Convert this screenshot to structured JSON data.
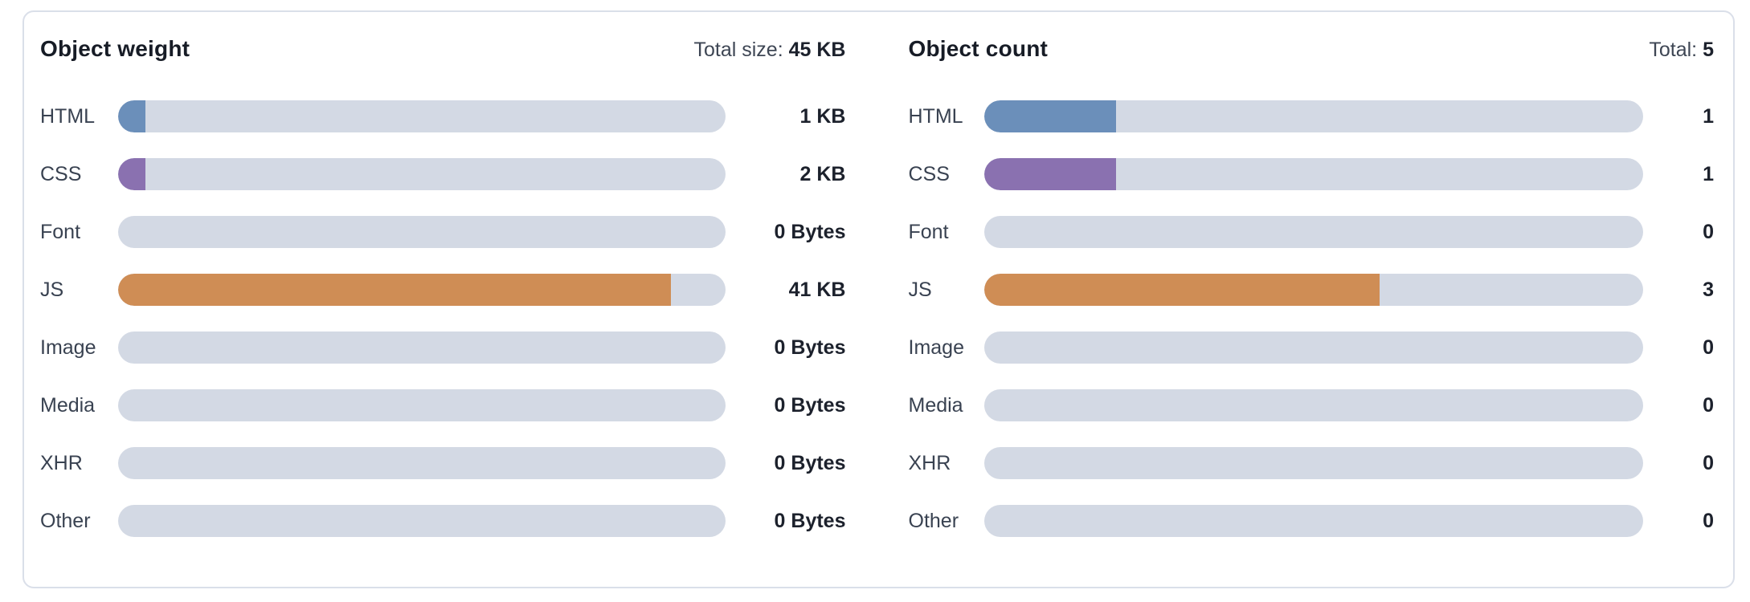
{
  "card": {
    "name": "resource-breakdown"
  },
  "colors": {
    "track": "#d3d9e4",
    "card_border": "#dadfe9",
    "html_bar": "#6b8fba",
    "css_bar": "#8a71b0",
    "js_bar": "#cf8d55",
    "title_text": "#171c26",
    "label_text": "#394251",
    "value_text": "#1c212c"
  },
  "panels": [
    {
      "title": "Object weight",
      "total_label": "Total size:",
      "total_value": "45 KB",
      "total": 45,
      "rows": [
        {
          "label": "HTML",
          "value_text": "1 KB",
          "amount": 1,
          "color": "#6b8fba"
        },
        {
          "label": "CSS",
          "value_text": "2 KB",
          "amount": 2,
          "color": "#8a71b0"
        },
        {
          "label": "Font",
          "value_text": "0 Bytes",
          "amount": 0,
          "color": null
        },
        {
          "label": "JS",
          "value_text": "41 KB",
          "amount": 41,
          "color": "#cf8d55"
        },
        {
          "label": "Image",
          "value_text": "0 Bytes",
          "amount": 0,
          "color": null
        },
        {
          "label": "Media",
          "value_text": "0 Bytes",
          "amount": 0,
          "color": null
        },
        {
          "label": "XHR",
          "value_text": "0 Bytes",
          "amount": 0,
          "color": null
        },
        {
          "label": "Other",
          "value_text": "0 Bytes",
          "amount": 0,
          "color": null
        }
      ]
    },
    {
      "title": "Object count",
      "total_label": "Total:",
      "total_value": "5",
      "total": 5,
      "rows": [
        {
          "label": "HTML",
          "value_text": "1",
          "amount": 1,
          "color": "#6b8fba"
        },
        {
          "label": "CSS",
          "value_text": "1",
          "amount": 1,
          "color": "#8a71b0"
        },
        {
          "label": "Font",
          "value_text": "0",
          "amount": 0,
          "color": null
        },
        {
          "label": "JS",
          "value_text": "3",
          "amount": 3,
          "color": "#cf8d55"
        },
        {
          "label": "Image",
          "value_text": "0",
          "amount": 0,
          "color": null
        },
        {
          "label": "Media",
          "value_text": "0",
          "amount": 0,
          "color": null
        },
        {
          "label": "XHR",
          "value_text": "0",
          "amount": 0,
          "color": null
        },
        {
          "label": "Other",
          "value_text": "0",
          "amount": 0,
          "color": null
        }
      ]
    }
  ],
  "chart_data": [
    {
      "type": "bar",
      "orientation": "horizontal",
      "title": "Object weight",
      "total_annotation": "Total size: 45 KB",
      "categories": [
        "HTML",
        "CSS",
        "Font",
        "JS",
        "Image",
        "Media",
        "XHR",
        "Other"
      ],
      "values": [
        1,
        2,
        0,
        41,
        0,
        0,
        0,
        0
      ],
      "value_labels": [
        "1 KB",
        "2 KB",
        "0 Bytes",
        "41 KB",
        "0 Bytes",
        "0 Bytes",
        "0 Bytes",
        "0 Bytes"
      ],
      "unit": "KB",
      "xlim": [
        0,
        45
      ],
      "grid": false,
      "legend": false,
      "bar_colors": [
        "#6b8fba",
        "#8a71b0",
        null,
        "#cf8d55",
        null,
        null,
        null,
        null
      ]
    },
    {
      "type": "bar",
      "orientation": "horizontal",
      "title": "Object count",
      "total_annotation": "Total: 5",
      "categories": [
        "HTML",
        "CSS",
        "Font",
        "JS",
        "Image",
        "Media",
        "XHR",
        "Other"
      ],
      "values": [
        1,
        1,
        0,
        3,
        0,
        0,
        0,
        0
      ],
      "value_labels": [
        "1",
        "1",
        "0",
        "3",
        "0",
        "0",
        "0",
        "0"
      ],
      "unit": "count",
      "xlim": [
        0,
        5
      ],
      "grid": false,
      "legend": false,
      "bar_colors": [
        "#6b8fba",
        "#8a71b0",
        null,
        "#cf8d55",
        null,
        null,
        null,
        null
      ]
    }
  ]
}
